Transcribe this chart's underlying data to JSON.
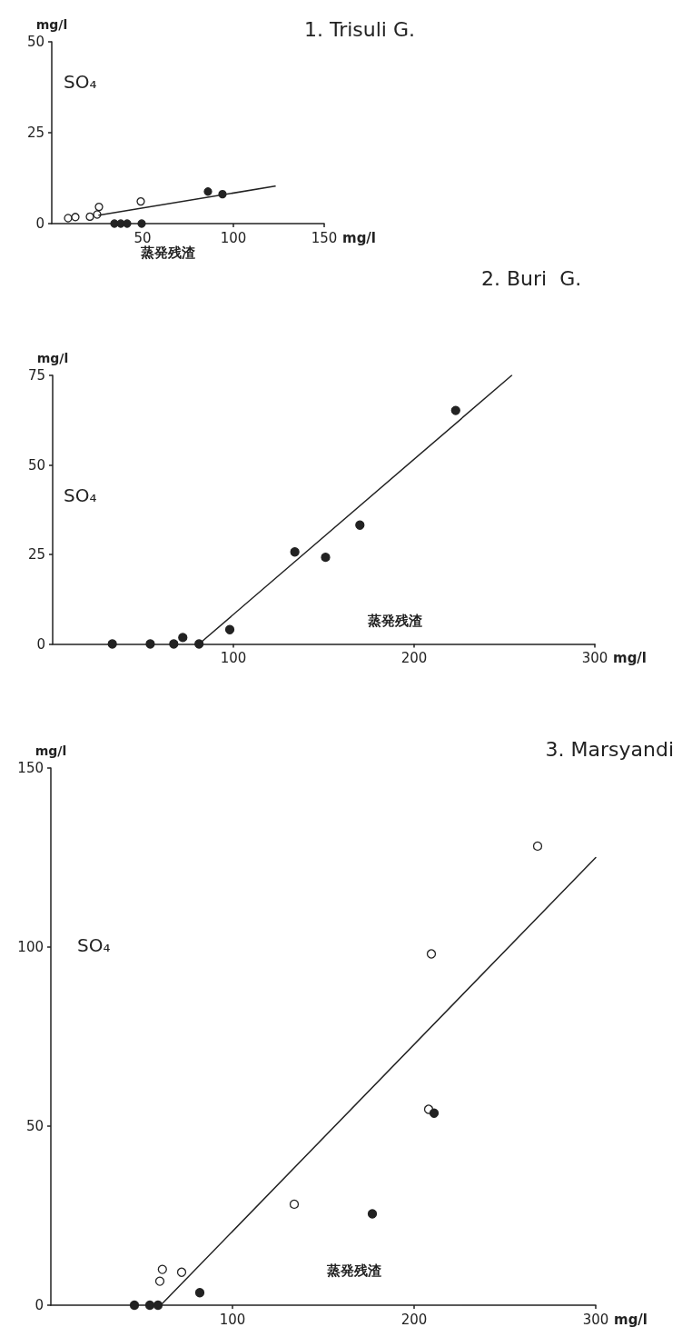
{
  "chart_data": [
    {
      "type": "scatter",
      "title": "1. Trisuli G.",
      "ylabel": "mg/l",
      "xlabel": "mg/l",
      "annotations": [
        "SO₄",
        "蒸発残渣"
      ],
      "marker": "circle",
      "grid": false,
      "xlim": [
        0,
        150
      ],
      "xticks": [
        50,
        100,
        150
      ],
      "ylim": [
        0,
        50
      ],
      "yticks": [
        0,
        25,
        50
      ],
      "series": [
        {
          "color": "#ffffff",
          "x": [
            9,
            13,
            21,
            25,
            26,
            49
          ],
          "values": [
            1.5,
            1.8,
            1.9,
            2.5,
            4.6,
            6.1
          ]
        },
        {
          "color": "#222222",
          "x": [
            34.5,
            38,
            41.5,
            49.5,
            86,
            94
          ],
          "values": [
            0,
            0,
            0,
            0,
            8.8,
            8.1
          ]
        },
        {
          "type": "line",
          "marker": "none",
          "line_style": "solid",
          "color": "#222222",
          "x": [
            26,
            123
          ],
          "values": [
            2.3,
            10.3
          ]
        }
      ]
    },
    {
      "type": "scatter",
      "title": "2. Buri  G.",
      "ylabel": "mg/l",
      "xlabel": "mg/l",
      "annotations": [
        "SO₄",
        "蒸発残渣"
      ],
      "marker": "circle",
      "grid": false,
      "xlim": [
        0,
        300
      ],
      "xticks": [
        100,
        200,
        300
      ],
      "ylim": [
        0,
        75
      ],
      "yticks": [
        0,
        25,
        50,
        75
      ],
      "series": [
        {
          "color": "#222222",
          "x": [
            33,
            54,
            67,
            72,
            81,
            98,
            134,
            151,
            170,
            223
          ],
          "values": [
            0,
            0,
            0,
            1.8,
            0,
            4,
            25.7,
            24.2,
            33.2,
            65.2
          ]
        },
        {
          "type": "line",
          "marker": "none",
          "line_style": "solid",
          "color": "#222222",
          "x": [
            81,
            254
          ],
          "values": [
            0,
            75
          ]
        }
      ]
    },
    {
      "type": "scatter",
      "title": "3. Marsyandi",
      "ylabel": "mg/l",
      "xlabel": "mg/l",
      "annotations": [
        "SO₄",
        "蒸発残渣"
      ],
      "marker": "circle",
      "grid": false,
      "xlim": [
        0,
        300
      ],
      "xticks": [
        100,
        200,
        300
      ],
      "ylim": [
        0,
        150
      ],
      "yticks": [
        0,
        50,
        100,
        150
      ],
      "series": [
        {
          "color": "#ffffff",
          "x": [
            61.4,
            60,
            72,
            134,
            208,
            209.5,
            268
          ],
          "values": [
            10,
            6.7,
            9.2,
            28.2,
            54.7,
            98.1,
            128.2
          ]
        },
        {
          "color": "#222222",
          "x": [
            46,
            54.5,
            59,
            82,
            177,
            211
          ],
          "values": [
            0,
            0,
            0,
            3.5,
            25.5,
            53.6
          ]
        },
        {
          "type": "line",
          "marker": "none",
          "line_style": "solid",
          "color": "#222222",
          "x": [
            60.5,
            300
          ],
          "values": [
            0,
            125
          ]
        }
      ]
    }
  ]
}
